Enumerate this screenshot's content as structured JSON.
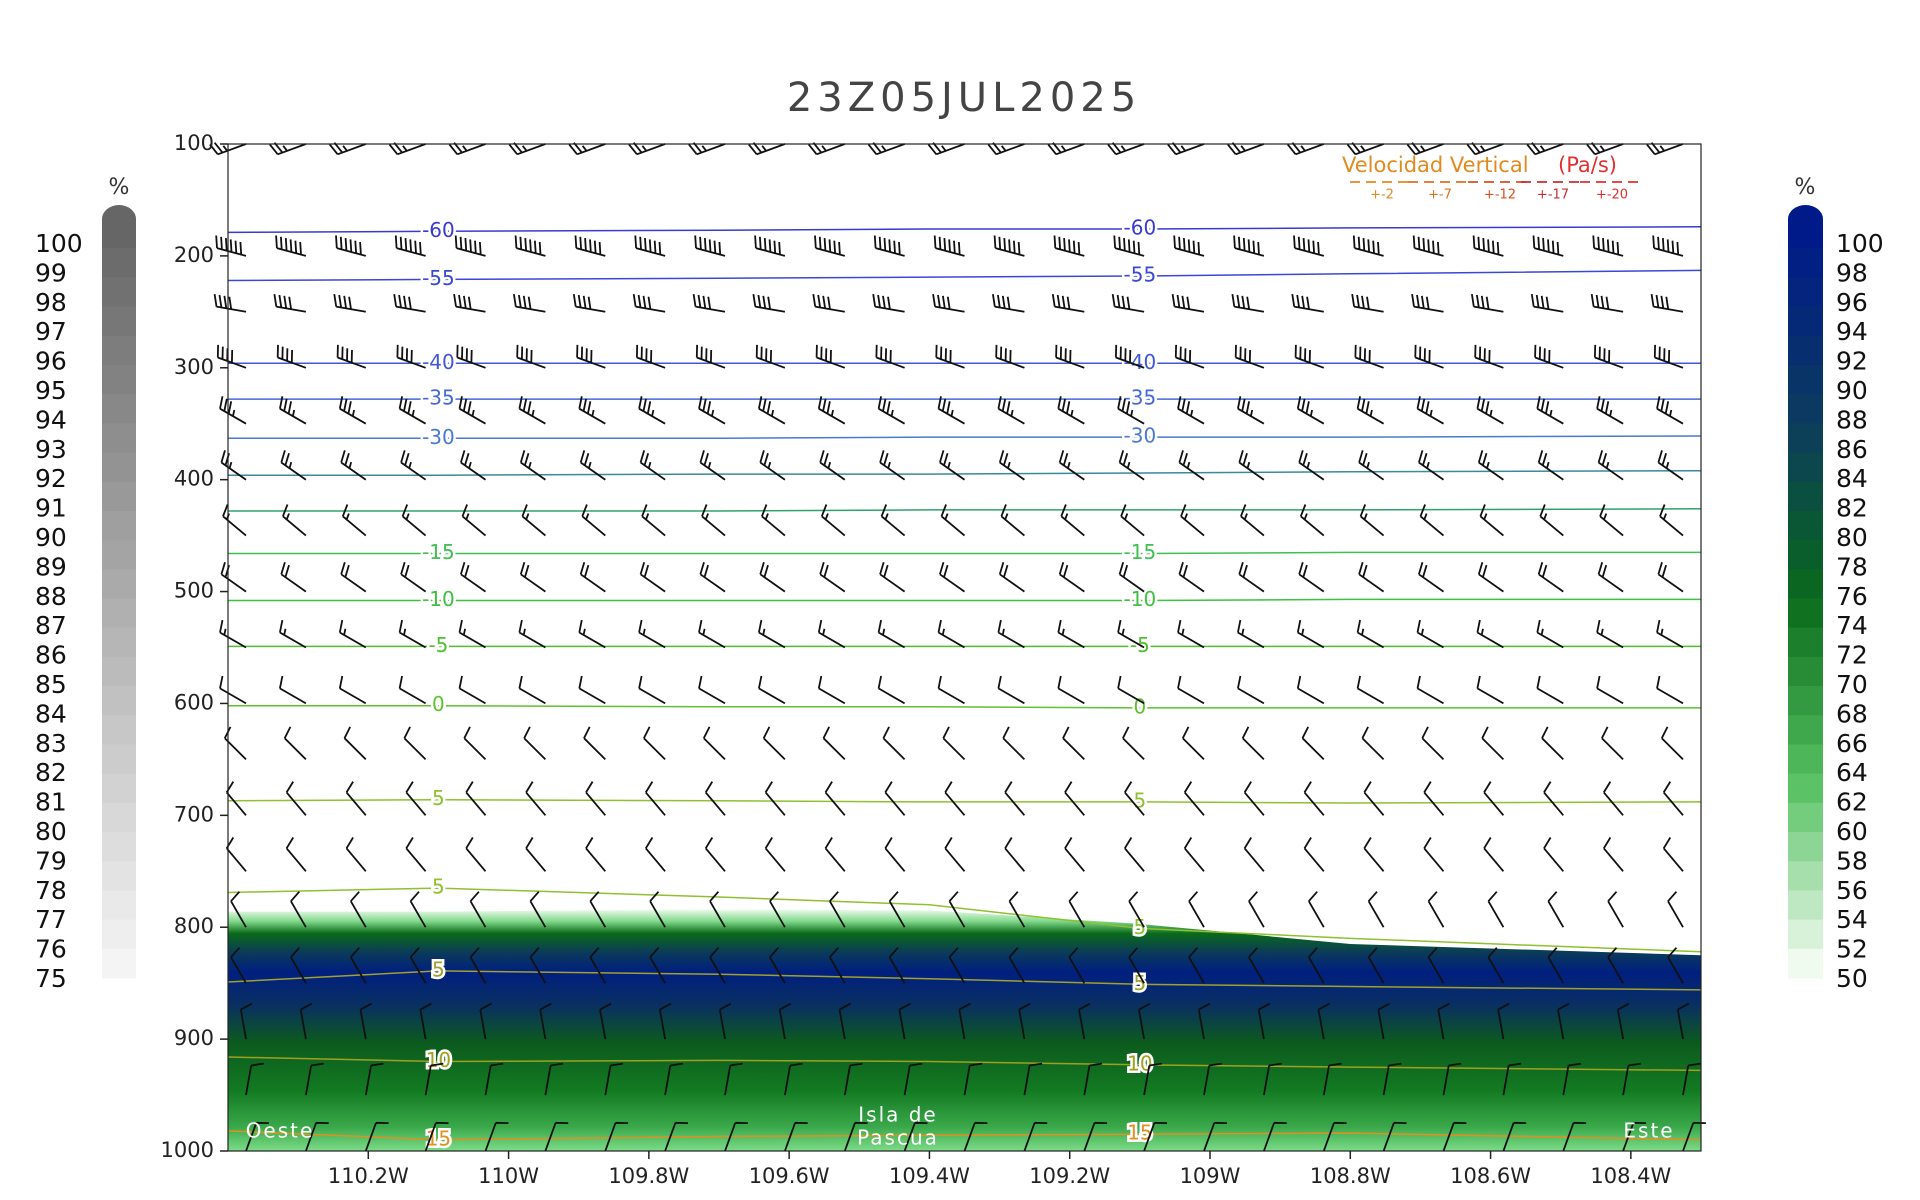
{
  "chart_data": {
    "type": "cross_section",
    "title": "23Z05JUL2025",
    "xlim": [
      -110.4,
      -108.3
    ],
    "xticks": [
      {
        "value": -110.2,
        "label": "110.2W"
      },
      {
        "value": -110.0,
        "label": "110W"
      },
      {
        "value": -109.8,
        "label": "109.8W"
      },
      {
        "value": -109.6,
        "label": "109.6W"
      },
      {
        "value": -109.4,
        "label": "109.4W"
      },
      {
        "value": -109.2,
        "label": "109.2W"
      },
      {
        "value": -109.0,
        "label": "109W"
      },
      {
        "value": -108.8,
        "label": "108.8W"
      },
      {
        "value": -108.6,
        "label": "108.6W"
      },
      {
        "value": -108.4,
        "label": "108.4W"
      }
    ],
    "ylim": [
      1000,
      100
    ],
    "yticks": [
      100,
      200,
      300,
      400,
      500,
      600,
      700,
      800,
      900,
      1000
    ],
    "contours": {
      "x": [
        -110.4,
        -110.1,
        -109.7,
        -109.4,
        -109.1,
        -108.8,
        -108.3
      ],
      "series": [
        {
          "name": "-60",
          "color": "#3a3ad0",
          "values": [
            179,
            178,
            177,
            176,
            176,
            175,
            174
          ]
        },
        {
          "name": "-55",
          "color": "#3a48d4",
          "values": [
            222,
            221,
            220,
            219,
            218,
            216,
            213
          ]
        },
        {
          "name": "-40",
          "color": "#4058d8",
          "values": [
            296,
            296,
            296,
            296,
            296,
            296,
            296
          ]
        },
        {
          "name": "-35",
          "color": "#4668d8",
          "values": [
            328,
            328,
            328,
            328,
            328,
            328,
            328
          ]
        },
        {
          "name": "-30",
          "color": "#4a7ad0",
          "values": [
            363,
            363,
            363,
            362,
            362,
            362,
            361
          ]
        },
        {
          "name": null,
          "color": "#3a8a9a",
          "values": [
            396,
            396,
            395,
            395,
            394,
            393,
            392
          ]
        },
        {
          "name": null,
          "color": "#30a070",
          "values": [
            428,
            428,
            428,
            427,
            427,
            427,
            426
          ]
        },
        {
          "name": "-15",
          "color": "#40c050",
          "values": [
            466,
            466,
            466,
            466,
            466,
            465,
            465
          ]
        },
        {
          "name": "-10",
          "color": "#40c040",
          "values": [
            508,
            508,
            508,
            508,
            508,
            507,
            507
          ]
        },
        {
          "name": "-5",
          "color": "#50c030",
          "values": [
            549,
            549,
            549,
            549,
            549,
            549,
            549
          ]
        },
        {
          "name": "0",
          "color": "#60c030",
          "values": [
            602,
            602,
            603,
            603,
            604,
            604,
            604
          ]
        },
        {
          "name": "5",
          "color": "#90c030",
          "values": [
            687,
            686,
            687,
            688,
            688,
            689,
            688
          ]
        },
        {
          "name": "5",
          "color": "#90c030",
          "values": [
            769,
            765,
            773,
            780,
            801,
            810,
            822
          ]
        },
        {
          "name": "5",
          "color": "#a0a030",
          "values": [
            849,
            839,
            842,
            846,
            851,
            853,
            856
          ]
        },
        {
          "name": "10",
          "color": "#a0a020",
          "values": [
            916,
            920,
            919,
            920,
            923,
            925,
            928
          ]
        },
        {
          "name": "15",
          "color": "#e09020",
          "values": [
            982,
            990,
            987,
            986,
            985,
            984,
            990
          ]
        }
      ]
    },
    "humidity_layer": {
      "x": [
        -110.4,
        -110.1,
        -109.7,
        -109.4,
        -109.1,
        -108.8,
        -108.3
      ],
      "top": [
        786,
        786,
        784,
        785,
        797,
        815,
        825
      ]
    },
    "wind": {
      "levels": [
        100,
        200,
        250,
        300,
        350,
        400,
        450,
        500,
        550,
        600,
        650,
        700,
        750,
        800,
        850,
        900,
        950,
        1000
      ],
      "direction": [
        250,
        285,
        280,
        290,
        300,
        305,
        310,
        305,
        300,
        300,
        315,
        320,
        320,
        330,
        330,
        350,
        10,
        20
      ],
      "speed": [
        25,
        60,
        40,
        40,
        35,
        25,
        15,
        20,
        15,
        10,
        10,
        10,
        10,
        10,
        10,
        10,
        10,
        10
      ]
    },
    "left_colorbar": {
      "unit": "%",
      "colors": [
        "#666666",
        "#f4f4f4"
      ],
      "labels": [
        100,
        99,
        98,
        97,
        96,
        95,
        94,
        93,
        92,
        91,
        90,
        89,
        88,
        87,
        86,
        85,
        84,
        83,
        82,
        81,
        80,
        79,
        78,
        77,
        76,
        75
      ]
    },
    "right_colorbar": {
      "unit": "%",
      "colors": [
        "#001a8a",
        "#0b3a60",
        "#0a6a1a",
        "#55c060",
        "#f0fbf0"
      ],
      "labels": [
        100,
        98,
        96,
        94,
        92,
        90,
        88,
        86,
        84,
        82,
        80,
        78,
        76,
        74,
        72,
        70,
        68,
        66,
        64,
        62,
        60,
        58,
        56,
        54,
        52,
        50
      ]
    },
    "velocity_legend": {
      "title": "Velocidad Vertical",
      "unit": "(Pa/s)",
      "labels": [
        "+-2",
        "+-7",
        "+-12",
        "+-17",
        "+-20"
      ],
      "colors": [
        "#e08a20",
        "#e07020",
        "#d85020",
        "#c83030",
        "#e03030"
      ]
    },
    "annotations": {
      "west": "Oeste",
      "island_line1": "Isla de",
      "island_line2": "Pascua",
      "east": "Este"
    }
  }
}
